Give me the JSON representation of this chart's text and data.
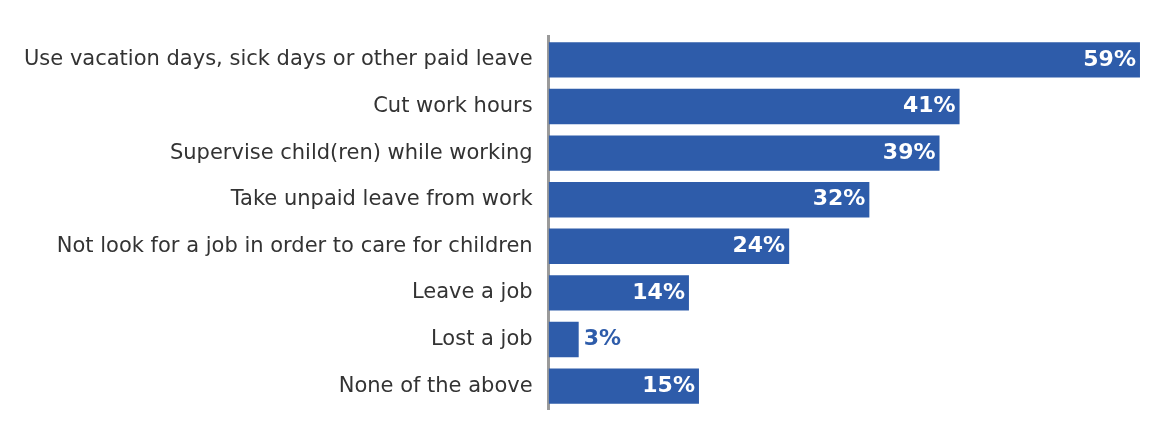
{
  "chart_data": {
    "type": "bar",
    "orientation": "horizontal",
    "categories": [
      "Use vacation days, sick days or other paid leave",
      "Cut work hours",
      "Supervise child(ren) while working",
      "Take unpaid leave from work",
      "Not look for a job in order to care for children",
      "Leave a job",
      "Lost a job",
      "None of the above"
    ],
    "values": [
      59,
      41,
      39,
      32,
      24,
      14,
      3,
      15
    ],
    "value_labels": [
      "59%",
      "41%",
      "39%",
      "32%",
      "24%",
      "14%",
      "3%",
      "15%"
    ],
    "color": "#2e5caa",
    "grid": false,
    "legend": false,
    "tick_labels": "y"
  }
}
